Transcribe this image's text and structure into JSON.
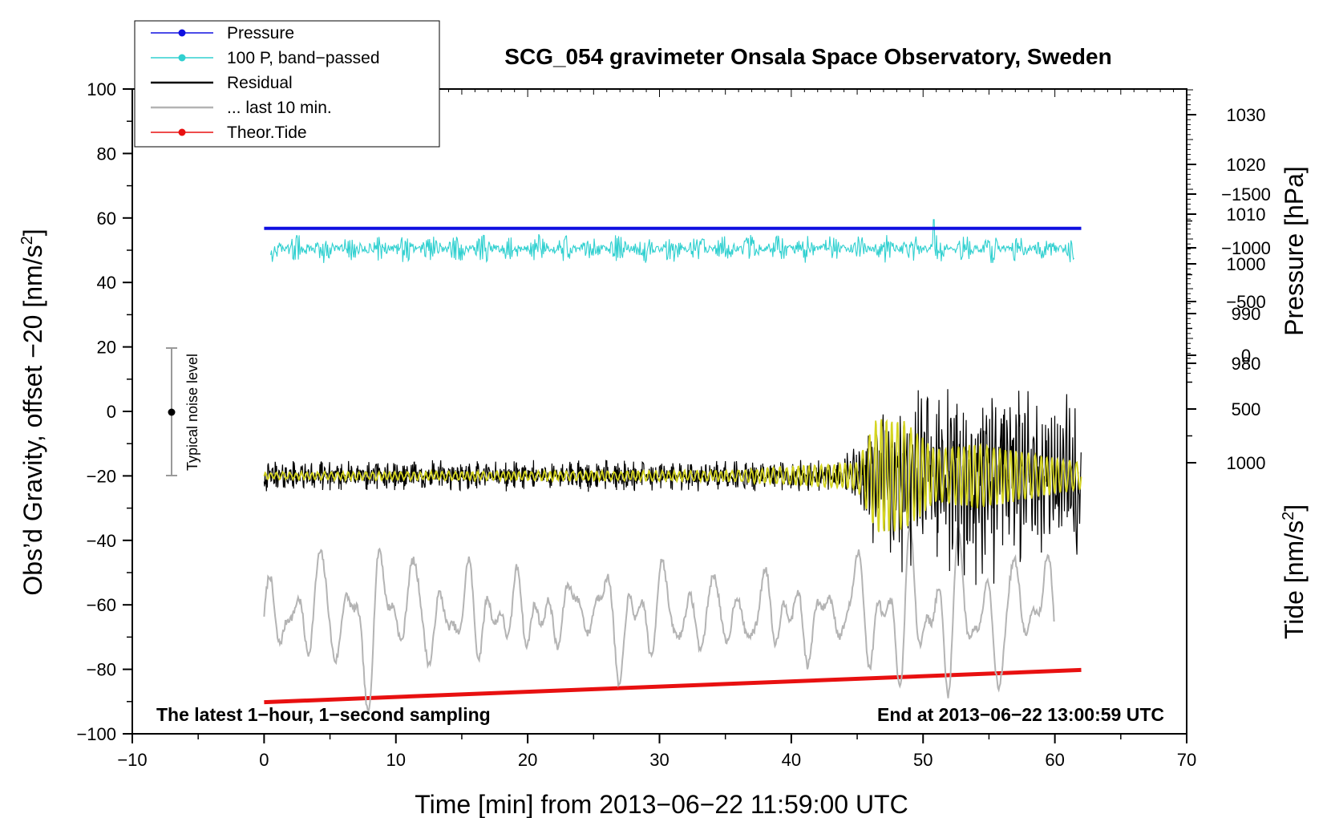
{
  "chart_data": {
    "type": "line",
    "title": "SCG_054 gravimeter Onsala Space Observatory, Sweden",
    "xlabel": "Time [min] from 2013−06−22 11:59:00 UTC",
    "xlim": [
      -10,
      70
    ],
    "xticks": [
      -10,
      0,
      10,
      20,
      30,
      40,
      50,
      60,
      70
    ],
    "xtick_labels": [
      "−10",
      "0",
      "10",
      "20",
      "30",
      "40",
      "50",
      "60",
      "70"
    ],
    "left_axis": {
      "label_main": "Obs’d Gravity, offset −20 [nm/s",
      "label_sup": "2",
      "label_end": "]",
      "ylim": [
        -100,
        100
      ],
      "ticks": [
        -100,
        -80,
        -60,
        -40,
        -20,
        0,
        20,
        40,
        60,
        80,
        100
      ],
      "tick_labels": [
        "−100",
        "−80",
        "−60",
        "−40",
        "−20",
        "0",
        "20",
        "40",
        "60",
        "80",
        "100"
      ]
    },
    "right_pressure_axis": {
      "label": "Pressure [hPa]",
      "ticks": [
        980,
        990,
        1000,
        1010,
        1020,
        1030
      ],
      "tick_labels": [
        "980",
        "990",
        "1000",
        "1010",
        "1020",
        "1030"
      ]
    },
    "right_tide_axis": {
      "label_main": "Tide [nm/s",
      "label_sup": "2",
      "label_end": "]",
      "ticks": [
        -1500,
        -1000,
        -500,
        0,
        500,
        1000
      ],
      "tick_labels": [
        "−1500",
        "−1000",
        "−500",
        "0",
        "500",
        "1000"
      ]
    },
    "legend": {
      "position": "top-left",
      "entries": [
        {
          "name": "Pressure",
          "color": "#1010e0",
          "marker": true
        },
        {
          "name": "100 P, band−passed",
          "color": "#30d0d0",
          "marker": true
        },
        {
          "name": "Residual",
          "color": "#000000",
          "marker": false
        },
        {
          "name": "... last 10 min.",
          "color": "#b4b4b4",
          "marker": false
        },
        {
          "name": "Theor.Tide",
          "color": "#e81010",
          "marker": true
        }
      ]
    },
    "series": [
      {
        "name": "Pressure",
        "color": "#1010e0",
        "x_range": [
          0,
          62
        ],
        "y_level": 56.8,
        "style": "flat"
      },
      {
        "name": "100 P, band−passed",
        "color": "#30d0d0",
        "x_range": [
          0.5,
          61.5
        ],
        "y_center": 50.5,
        "amplitude": 3.5,
        "spike": {
          "x": 50.8,
          "y": 59.5
        }
      },
      {
        "name": "Residual",
        "color": "#000000",
        "x_range": [
          0,
          62
        ],
        "y_center": -20,
        "envelope": [
          [
            0,
            5
          ],
          [
            44,
            5
          ],
          [
            45,
            8
          ],
          [
            46,
            16
          ],
          [
            50,
            22
          ],
          [
            54,
            24
          ],
          [
            62,
            18
          ]
        ]
      },
      {
        "name": "Residual (smoothed)",
        "color": "#d4d420",
        "x_range": [
          0,
          62
        ],
        "y_center": -20,
        "envelope": [
          [
            0,
            1
          ],
          [
            35,
            1.5
          ],
          [
            45,
            4
          ],
          [
            46.5,
            18
          ],
          [
            48.5,
            17
          ],
          [
            51,
            8
          ],
          [
            54,
            10
          ],
          [
            62,
            4
          ]
        ]
      },
      {
        "name": "... last 10 min.",
        "color": "#b4b4b4",
        "x_range": [
          0,
          60
        ],
        "y_center": -63,
        "envelope": [
          [
            0,
            8
          ],
          [
            3,
            20
          ],
          [
            8,
            30
          ],
          [
            12,
            20
          ],
          [
            22,
            8
          ],
          [
            26,
            20
          ],
          [
            36,
            15
          ],
          [
            42,
            12
          ],
          [
            47,
            25
          ],
          [
            55,
            28
          ],
          [
            60,
            18
          ]
        ]
      },
      {
        "name": "Theor.Tide",
        "color": "#e81010",
        "x": [
          0,
          62
        ],
        "y": [
          -90.2,
          -80.2
        ]
      }
    ],
    "noise_bar": {
      "label": "Typical noise level",
      "x": -7,
      "y_center": 0,
      "y_range": [
        -20,
        20
      ]
    },
    "annotations": {
      "left": "The latest 1−hour, 1−second sampling",
      "right": "End at 2013−06−22 13:00:59 UTC"
    }
  }
}
